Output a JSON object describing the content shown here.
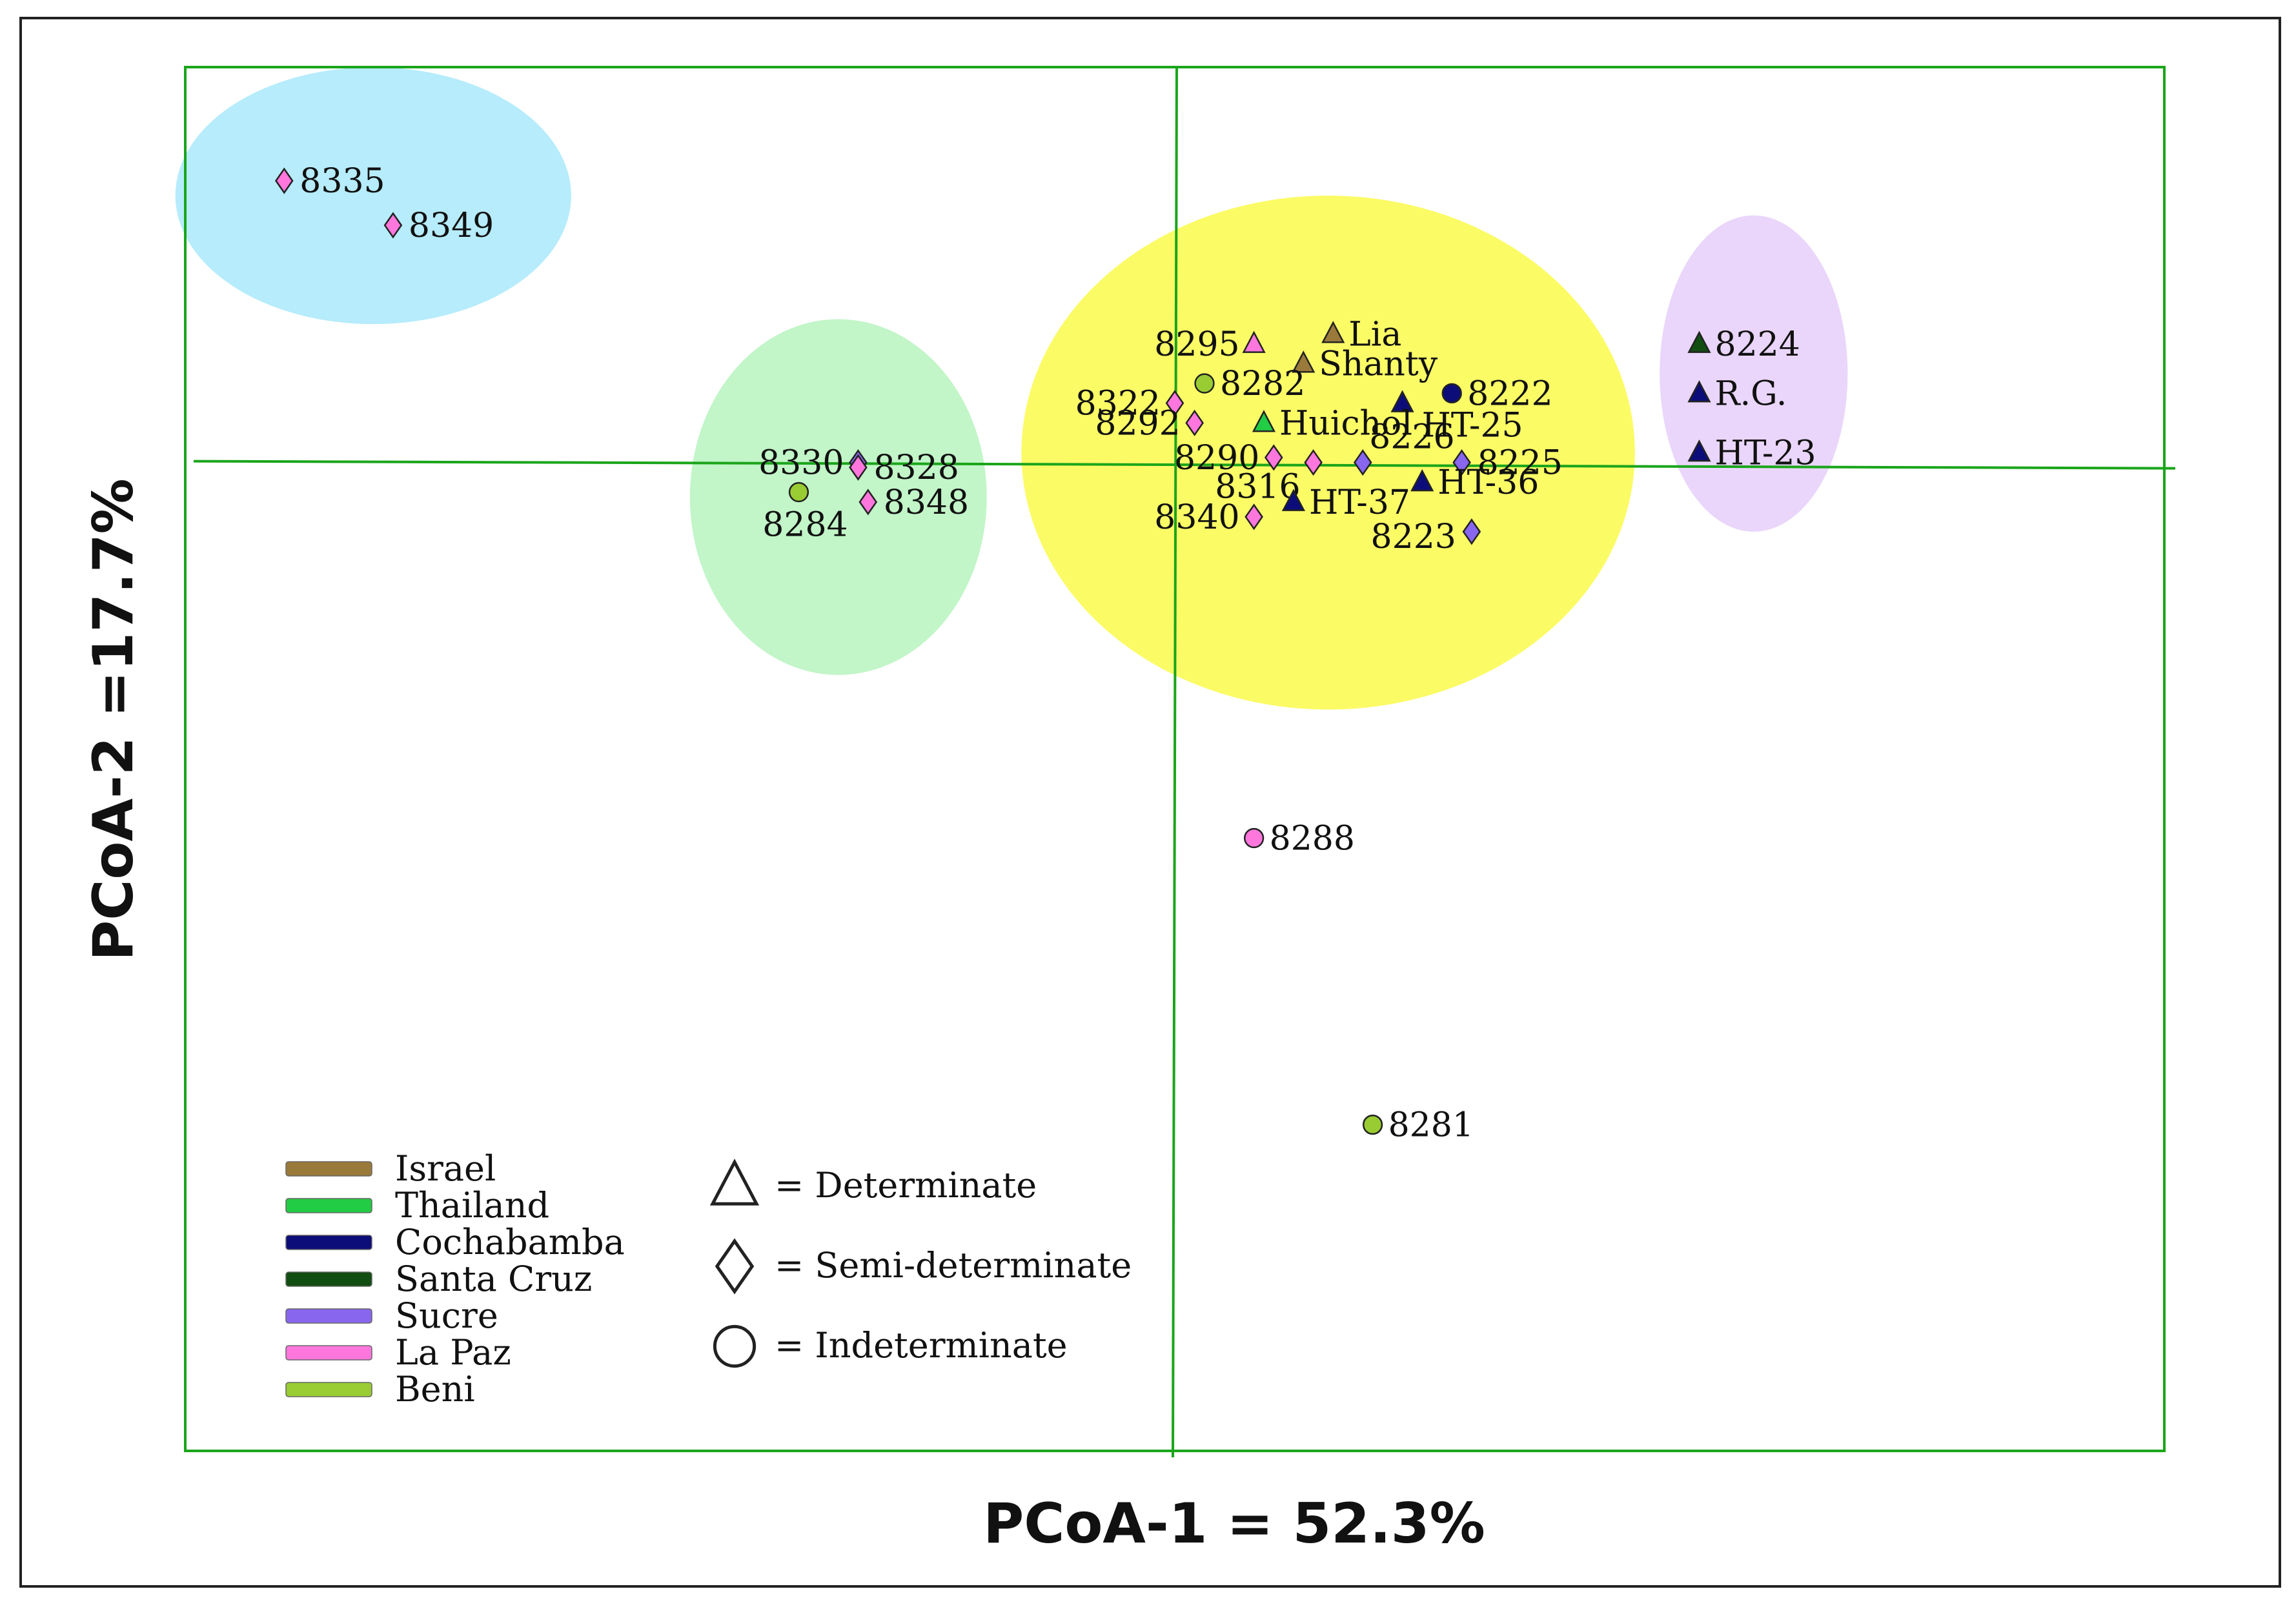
{
  "chart_data": {
    "type": "scatter",
    "title": "",
    "xlabel": "PCoA-1 = 52.3%",
    "ylabel": "PCoA-2 =17.7%",
    "xlim": [
      -100,
      100
    ],
    "ylim": [
      -100,
      40
    ],
    "grid": false,
    "colors": {
      "frame": "#1aa51a",
      "axis": "#1aa51a",
      "Israel": "#9a7a3a",
      "Thailand": "#22cc44",
      "Cochabamba": "#0d0d7a",
      "Santa Cruz": "#124d12",
      "Sucre": "#8866ee",
      "La Paz": "#ff77dd",
      "Beni": "#99cc33"
    },
    "clusters": [
      {
        "name": "cluster-blue",
        "color": "#b6ecfb",
        "cx": -81,
        "cy": 27,
        "rx": 20,
        "ry": 13
      },
      {
        "name": "cluster-green",
        "color": "#c2f5c8",
        "cx": -34,
        "cy": -3.5,
        "rx": 15,
        "ry": 18
      },
      {
        "name": "cluster-yellow",
        "color": "#fbfb66",
        "cx": 15.5,
        "cy": 1,
        "rx": 31,
        "ry": 26
      },
      {
        "name": "cluster-purple",
        "color": "#ead6fa",
        "cx": 58.5,
        "cy": 9,
        "rx": 9.5,
        "ry": 16
      }
    ],
    "points": [
      {
        "label": "8335",
        "x": -90,
        "y": 28.5,
        "origin": "La Paz",
        "habit": "semi-determinate"
      },
      {
        "label": "8349",
        "x": -79,
        "y": 24,
        "origin": "La Paz",
        "habit": "semi-determinate"
      },
      {
        "label": "8330",
        "x": -32,
        "y": 0,
        "origin": "Sucre",
        "habit": "semi-determinate"
      },
      {
        "label": "8328",
        "x": -32,
        "y": -0.5,
        "origin": "La Paz",
        "habit": "semi-determinate"
      },
      {
        "label": "8284",
        "x": -38,
        "y": -3,
        "origin": "Beni",
        "habit": "indeterminate"
      },
      {
        "label": "8348",
        "x": -31,
        "y": -4,
        "origin": "La Paz",
        "habit": "semi-determinate"
      },
      {
        "label": "8295",
        "x": 8,
        "y": 12,
        "origin": "La Paz",
        "habit": "determinate"
      },
      {
        "label": "Lia",
        "x": 16,
        "y": 13,
        "origin": "Israel",
        "habit": "determinate"
      },
      {
        "label": "Shanty",
        "x": 13,
        "y": 10,
        "origin": "Israel",
        "habit": "determinate"
      },
      {
        "label": "8282",
        "x": 3,
        "y": 8,
        "origin": "Beni",
        "habit": "indeterminate"
      },
      {
        "label": "8322",
        "x": 0,
        "y": 6,
        "origin": "La Paz",
        "habit": "semi-determinate"
      },
      {
        "label": "8222",
        "x": 28,
        "y": 7,
        "origin": "Cochabamba",
        "habit": "indeterminate"
      },
      {
        "label": "HT-25",
        "x": 23,
        "y": 6,
        "origin": "Cochabamba",
        "habit": "determinate"
      },
      {
        "label": "Huichol",
        "x": 9,
        "y": 4,
        "origin": "Thailand",
        "habit": "determinate"
      },
      {
        "label": "8292",
        "x": 2,
        "y": 4,
        "origin": "La Paz",
        "habit": "semi-determinate"
      },
      {
        "label": "8290",
        "x": 10,
        "y": 0.5,
        "origin": "La Paz",
        "habit": "semi-determinate"
      },
      {
        "label": "8316",
        "x": 14,
        "y": 0,
        "origin": "La Paz",
        "habit": "semi-determinate"
      },
      {
        "label": "8226",
        "x": 19,
        "y": 0,
        "origin": "Sucre",
        "habit": "semi-determinate"
      },
      {
        "label": "8225",
        "x": 29,
        "y": 0,
        "origin": "Sucre",
        "habit": "semi-determinate"
      },
      {
        "label": "HT-36",
        "x": 25,
        "y": -2,
        "origin": "Cochabamba",
        "habit": "determinate"
      },
      {
        "label": "HT-37",
        "x": 12,
        "y": -4,
        "origin": "Cochabamba",
        "habit": "determinate"
      },
      {
        "label": "8340",
        "x": 8,
        "y": -5.5,
        "origin": "La Paz",
        "habit": "semi-determinate"
      },
      {
        "label": "8223",
        "x": 30,
        "y": -7,
        "origin": "Sucre",
        "habit": "semi-determinate"
      },
      {
        "label": "8224",
        "x": 53,
        "y": 12,
        "origin": "Santa Cruz",
        "habit": "determinate"
      },
      {
        "label": "R.G.",
        "x": 53,
        "y": 7,
        "origin": "Cochabamba",
        "habit": "determinate"
      },
      {
        "label": "HT-23",
        "x": 53,
        "y": 1,
        "origin": "Cochabamba",
        "habit": "determinate"
      },
      {
        "label": "8288",
        "x": 8,
        "y": -38,
        "origin": "La Paz",
        "habit": "indeterminate"
      },
      {
        "label": "8281",
        "x": 20,
        "y": -67,
        "origin": "Beni",
        "habit": "indeterminate"
      }
    ],
    "legend_origins": [
      "Israel",
      "Thailand",
      "Cochabamba",
      "Santa Cruz",
      "Sucre",
      "La Paz",
      "Beni"
    ],
    "legend_habits": [
      {
        "shape": "determinate",
        "label": "= Determinate"
      },
      {
        "shape": "semi-determinate",
        "label": "= Semi-determinate"
      },
      {
        "shape": "indeterminate",
        "label": "= Indeterminate"
      }
    ]
  }
}
